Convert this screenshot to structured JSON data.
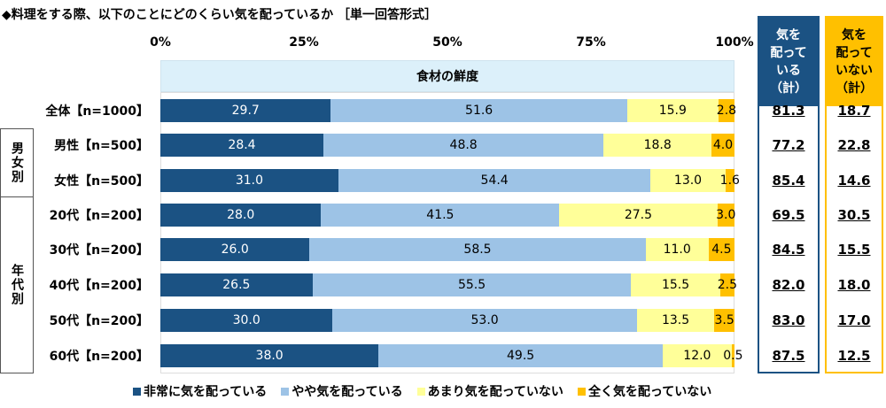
{
  "title": "◆料理をする際、以下のことにどのくらい気を配っているか ［単一回答形式］",
  "colors": {
    "very": "#1b5283",
    "somewhat": "#9dc3e6",
    "notmuch": "#ffff99",
    "notatall": "#ffc000",
    "summary_yes": "#1b5283",
    "summary_no": "#ffc000"
  },
  "groups": {
    "gender": "男女別",
    "age": "年代別"
  },
  "summary_headers": {
    "yes": "気を\n配って\nいる\n（計）",
    "no": "気を\n配って\nいない\n（計）"
  },
  "chart_data": {
    "type": "bar",
    "stacked": true,
    "orientation": "horizontal",
    "title": "食材の鮮度",
    "x_ticks": [
      "0%",
      "25%",
      "50%",
      "75%",
      "100%"
    ],
    "xlim": [
      0,
      100
    ],
    "series_names": [
      "非常に気を配っている",
      "やや気を配っている",
      "あまり気を配っていない",
      "全く気を配っていない"
    ],
    "legend_position": "bottom",
    "rows": [
      {
        "label": "全体【n=1000】",
        "values": [
          "29.7",
          "51.6",
          "15.9",
          "2.8"
        ],
        "yes": "81.3",
        "no": "18.7"
      },
      {
        "label": "男性【n=500】",
        "values": [
          "28.4",
          "48.8",
          "18.8",
          "4.0"
        ],
        "yes": "77.2",
        "no": "22.8"
      },
      {
        "label": "女性【n=500】",
        "values": [
          "31.0",
          "54.4",
          "13.0",
          "1.6"
        ],
        "yes": "85.4",
        "no": "14.6"
      },
      {
        "label": "20代【n=200】",
        "values": [
          "28.0",
          "41.5",
          "27.5",
          "3.0"
        ],
        "yes": "69.5",
        "no": "30.5"
      },
      {
        "label": "30代【n=200】",
        "values": [
          "26.0",
          "58.5",
          "11.0",
          "4.5"
        ],
        "yes": "84.5",
        "no": "15.5"
      },
      {
        "label": "40代【n=200】",
        "values": [
          "26.5",
          "55.5",
          "15.5",
          "2.5"
        ],
        "yes": "82.0",
        "no": "18.0"
      },
      {
        "label": "50代【n=200】",
        "values": [
          "30.0",
          "53.0",
          "13.5",
          "3.5"
        ],
        "yes": "83.0",
        "no": "17.0"
      },
      {
        "label": "60代【n=200】",
        "values": [
          "38.0",
          "49.5",
          "12.0",
          "0.5"
        ],
        "yes": "87.5",
        "no": "12.5"
      }
    ]
  }
}
